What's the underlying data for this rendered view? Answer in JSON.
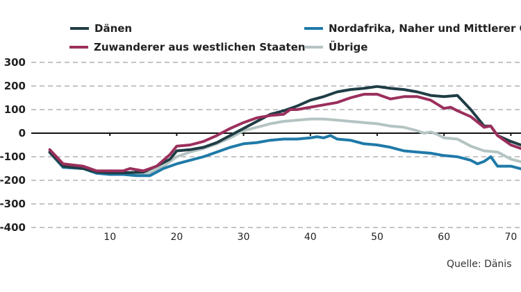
{
  "chart_data": {
    "type": "line",
    "title": "",
    "xlabel": "",
    "ylabel": "",
    "xlim": [
      -2,
      73
    ],
    "ylim": [
      -400,
      300
    ],
    "yticks": [
      300,
      200,
      100,
      0,
      -100,
      -200,
      -300,
      -400
    ],
    "ytick_labels": [
      "300",
      "200",
      "100",
      "0",
      "-100",
      "-200",
      "-300",
      "-400"
    ],
    "xticks": [
      10,
      20,
      30,
      40,
      50,
      60,
      70
    ],
    "xtick_labels": [
      "10",
      "20",
      "30",
      "40",
      "50",
      "60",
      "70"
    ],
    "grid": "horizontal dashed",
    "legend_position": "top",
    "series": [
      {
        "name": "Dänen",
        "color": "#1f3d45",
        "x": [
          1,
          3,
          6,
          8,
          10,
          12,
          15,
          17,
          19,
          20,
          22,
          24,
          26,
          28,
          30,
          32,
          34,
          36,
          38,
          40,
          42,
          44,
          46,
          48,
          50,
          52,
          54,
          56,
          58,
          60,
          62,
          64,
          66,
          67,
          68,
          70,
          72
        ],
        "values": [
          -80,
          -140,
          -150,
          -165,
          -168,
          -168,
          -165,
          -140,
          -110,
          -75,
          -70,
          -60,
          -40,
          -10,
          20,
          50,
          80,
          95,
          115,
          140,
          155,
          175,
          185,
          190,
          198,
          190,
          185,
          175,
          160,
          155,
          160,
          100,
          30,
          30,
          -10,
          -35,
          -55
        ]
      },
      {
        "name": "Zuwanderer aus westlichen Staaten",
        "color": "#9b2f5c",
        "x": [
          1,
          3,
          6,
          8,
          10,
          12,
          13,
          15,
          17,
          19,
          20,
          22,
          24,
          26,
          28,
          30,
          32,
          34,
          36,
          37,
          38,
          40,
          42,
          44,
          46,
          48,
          50,
          52,
          54,
          56,
          58,
          60,
          61,
          62,
          64,
          66,
          67,
          68,
          70,
          72
        ],
        "values": [
          -70,
          -130,
          -140,
          -160,
          -160,
          -160,
          -150,
          -160,
          -140,
          -90,
          -55,
          -50,
          -35,
          -10,
          20,
          45,
          65,
          75,
          80,
          100,
          100,
          110,
          120,
          130,
          150,
          165,
          165,
          145,
          155,
          155,
          140,
          105,
          110,
          95,
          70,
          25,
          30,
          -10,
          -50,
          -70
        ]
      },
      {
        "name": "Nordafrika, Naher und Mittlerer Osten",
        "color": "#1f7aa8",
        "x": [
          1,
          3,
          6,
          8,
          10,
          12,
          14,
          16,
          17,
          18,
          20,
          22,
          24,
          26,
          28,
          30,
          32,
          34,
          36,
          38,
          40,
          41,
          42,
          43,
          44,
          46,
          48,
          50,
          52,
          54,
          56,
          58,
          60,
          62,
          64,
          65,
          66,
          67,
          68,
          70,
          72
        ],
        "values": [
          -80,
          -145,
          -150,
          -170,
          -175,
          -175,
          -180,
          -180,
          -165,
          -150,
          -130,
          -115,
          -100,
          -80,
          -60,
          -45,
          -40,
          -30,
          -25,
          -25,
          -20,
          -15,
          -20,
          -10,
          -25,
          -30,
          -45,
          -50,
          -60,
          -75,
          -80,
          -85,
          -95,
          -100,
          -115,
          -130,
          -120,
          -100,
          -140,
          -140,
          -155
        ]
      },
      {
        "name": "Übrige",
        "color": "#b4c4c2",
        "x": [
          1,
          3,
          6,
          8,
          10,
          12,
          14,
          16,
          18,
          20,
          22,
          24,
          26,
          28,
          30,
          32,
          34,
          36,
          38,
          40,
          42,
          44,
          46,
          48,
          50,
          52,
          54,
          56,
          57,
          58,
          59,
          60,
          62,
          64,
          66,
          68,
          70,
          72
        ],
        "values": [
          -85,
          -145,
          -150,
          -165,
          -170,
          -170,
          -170,
          -168,
          -140,
          -100,
          -80,
          -65,
          -45,
          -20,
          10,
          25,
          40,
          50,
          55,
          60,
          60,
          55,
          50,
          45,
          40,
          30,
          25,
          10,
          0,
          5,
          -5,
          -20,
          -25,
          -55,
          -75,
          -80,
          -110,
          -125
        ]
      }
    ],
    "source": "Quelle:  Dänis"
  },
  "legend": [
    {
      "label": "Dänen",
      "color": "#1f3d45"
    },
    {
      "label": "Zuwanderer aus westlichen Staaten",
      "color": "#9b2f5c"
    },
    {
      "label": "Nordafrika, Naher und Mittlerer Oste",
      "color": "#1f7aa8"
    },
    {
      "label": "Übrige",
      "color": "#b4c4c2"
    }
  ],
  "footer": {
    "source": "Quelle:  Dänis"
  }
}
